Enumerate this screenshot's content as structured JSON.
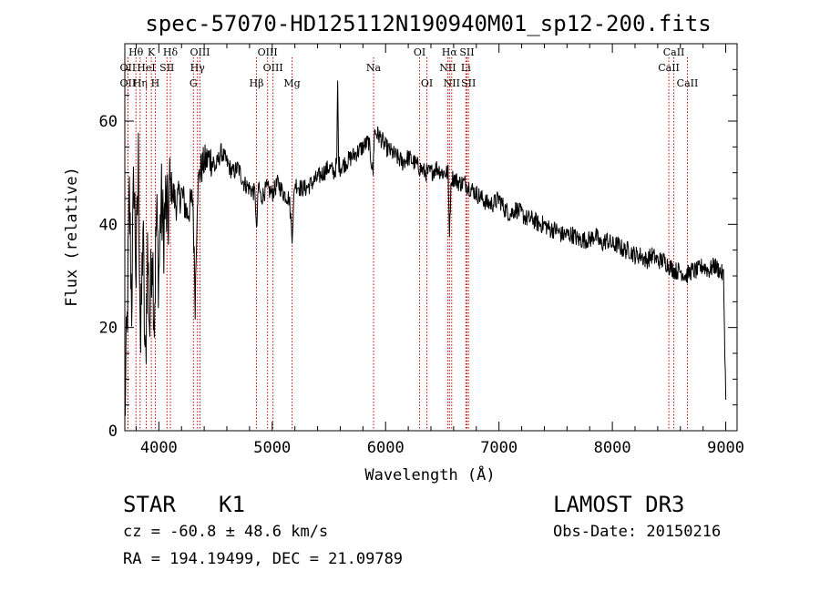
{
  "chart_data": {
    "type": "line",
    "title": "spec-57070-HD125112N190940M01_sp12-200.fits",
    "xlabel": "Wavelength (Å)",
    "ylabel": "Flux (relative)",
    "xlim": [
      3700,
      9100
    ],
    "ylim": [
      0,
      75
    ],
    "xticks": [
      4000,
      5000,
      6000,
      7000,
      8000,
      9000
    ],
    "yticks": [
      0,
      20,
      40,
      60
    ],
    "grid": false,
    "series": [
      {
        "name": "spectrum",
        "x": [
          3700,
          3720,
          3740,
          3760,
          3780,
          3800,
          3820,
          3840,
          3860,
          3880,
          3900,
          3920,
          3940,
          3960,
          3980,
          4000,
          4020,
          4040,
          4060,
          4080,
          4100,
          4150,
          4200,
          4250,
          4300,
          4320,
          4340,
          4360,
          4400,
          4450,
          4500,
          4550,
          4600,
          4650,
          4700,
          4750,
          4800,
          4850,
          4861,
          4880,
          4900,
          4950,
          5000,
          5050,
          5100,
          5150,
          5175,
          5200,
          5250,
          5300,
          5350,
          5400,
          5450,
          5500,
          5550,
          5570,
          5577,
          5585,
          5600,
          5650,
          5700,
          5750,
          5800,
          5850,
          5890,
          5900,
          5950,
          6000,
          6050,
          6100,
          6150,
          6200,
          6250,
          6300,
          6350,
          6400,
          6450,
          6500,
          6550,
          6563,
          6580,
          6600,
          6650,
          6700,
          6750,
          6800,
          6850,
          6900,
          6950,
          7000,
          7050,
          7100,
          7150,
          7200,
          7250,
          7300,
          7350,
          7400,
          7450,
          7500,
          7550,
          7600,
          7650,
          7700,
          7750,
          7800,
          7850,
          7900,
          7950,
          8000,
          8050,
          8100,
          8150,
          8200,
          8250,
          8300,
          8350,
          8400,
          8450,
          8500,
          8550,
          8600,
          8650,
          8700,
          8750,
          8800,
          8850,
          8900,
          8950,
          8980,
          9000
        ],
        "y": [
          3,
          20,
          45,
          25,
          50,
          30,
          52,
          15,
          40,
          10,
          35,
          20,
          38,
          22,
          42,
          30,
          45,
          38,
          44,
          40,
          48,
          44,
          46,
          42,
          45,
          25,
          46,
          50,
          52,
          53,
          51,
          54,
          52,
          50,
          51,
          48,
          47,
          46,
          38,
          48,
          45,
          47,
          46,
          48,
          46,
          45,
          38,
          48,
          47,
          47,
          48,
          49,
          50,
          51,
          50,
          52,
          68,
          52,
          51,
          52,
          53,
          54,
          55,
          56,
          50,
          58,
          57,
          55,
          54,
          53,
          52,
          53,
          52,
          51,
          50,
          50,
          51,
          50,
          50,
          39,
          49,
          49,
          48,
          48,
          47,
          46,
          45,
          44,
          44,
          45,
          43,
          42,
          43,
          42,
          41,
          41,
          40,
          40,
          39,
          39,
          38,
          38,
          38,
          37,
          37,
          37,
          38,
          36,
          37,
          36,
          36,
          35,
          35,
          34,
          34,
          33,
          34,
          33,
          33,
          32,
          31,
          31,
          30,
          31,
          31,
          32,
          31,
          32,
          31,
          30,
          6
        ]
      }
    ],
    "line_markers": [
      {
        "label": "OII",
        "wavelength": 3727,
        "row": 1
      },
      {
        "label": "Hθ",
        "wavelength": 3798,
        "row": 0
      },
      {
        "label": "OII",
        "wavelength": 3727,
        "row": 2
      },
      {
        "label": "Hη",
        "wavelength": 3835,
        "row": 2
      },
      {
        "label": "HeI",
        "wavelength": 3889,
        "row": 1
      },
      {
        "label": "K",
        "wavelength": 3934,
        "row": 0
      },
      {
        "label": "H",
        "wavelength": 3969,
        "row": 2
      },
      {
        "label": "SII",
        "wavelength": 4072,
        "row": 1
      },
      {
        "label": "Hδ",
        "wavelength": 4102,
        "row": 0
      },
      {
        "label": "G",
        "wavelength": 4305,
        "row": 2
      },
      {
        "label": "OIII",
        "wavelength": 4363,
        "row": 0
      },
      {
        "label": "Hγ",
        "wavelength": 4341,
        "row": 1
      },
      {
        "label": "Hβ",
        "wavelength": 4861,
        "row": 2
      },
      {
        "label": "OIII",
        "wavelength": 4959,
        "row": 0
      },
      {
        "label": "OIII",
        "wavelength": 5007,
        "row": 1
      },
      {
        "label": "Mg",
        "wavelength": 5175,
        "row": 2
      },
      {
        "label": "Na",
        "wavelength": 5894,
        "row": 1
      },
      {
        "label": "OI",
        "wavelength": 6300,
        "row": 0
      },
      {
        "label": "OI",
        "wavelength": 6364,
        "row": 2
      },
      {
        "label": "Hα",
        "wavelength": 6563,
        "row": 0
      },
      {
        "label": "NII",
        "wavelength": 6548,
        "row": 1
      },
      {
        "label": "NII",
        "wavelength": 6583,
        "row": 2
      },
      {
        "label": "SII",
        "wavelength": 6717,
        "row": 0
      },
      {
        "label": "Li",
        "wavelength": 6708,
        "row": 1
      },
      {
        "label": "SII",
        "wavelength": 6731,
        "row": 2
      },
      {
        "label": "CaII",
        "wavelength": 8542,
        "row": 0
      },
      {
        "label": "CaII",
        "wavelength": 8498,
        "row": 1
      },
      {
        "label": "CaII",
        "wavelength": 8662,
        "row": 2
      }
    ]
  },
  "info": {
    "class": "STAR",
    "subclass": "K1",
    "survey": "LAMOST DR3",
    "cz": "cz = -60.8 ± 48.6 km/s",
    "obs_date": "Obs-Date: 20150216",
    "coords": "RA = 194.19499, DEC =  21.09789"
  }
}
